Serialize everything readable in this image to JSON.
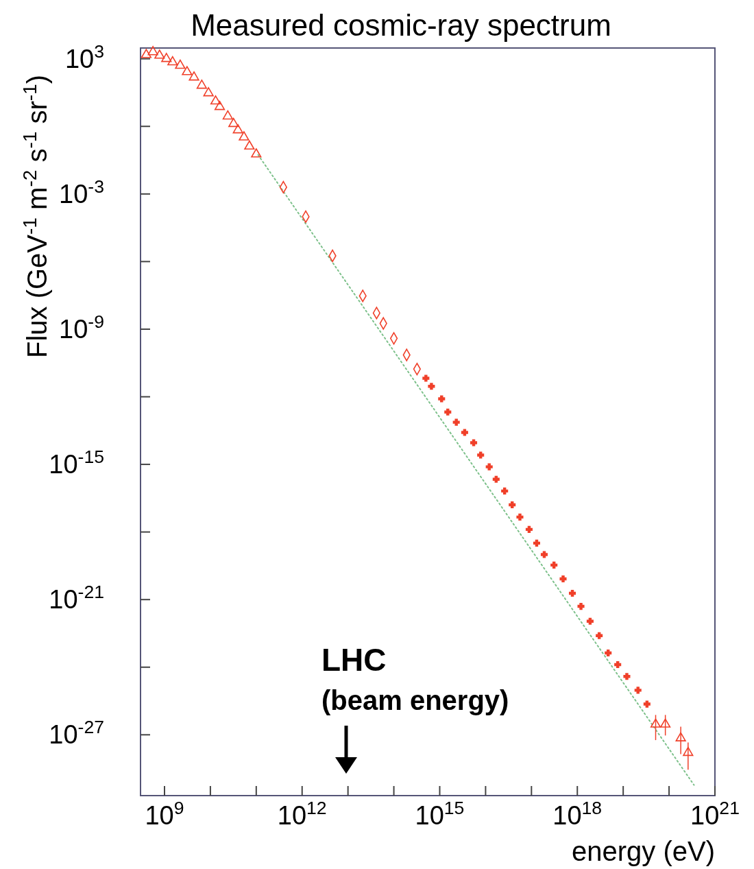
{
  "chart_data": {
    "type": "scatter",
    "title": "Measured cosmic-ray spectrum",
    "xlabel": "energy (eV)",
    "ylabel": "Flux (GeV$^{-1}$ m$^{-2}$ s$^{-1}$ sr$^{-1}$)",
    "log": "xy",
    "xlim": [
      300000000.0,
      1e+21
    ],
    "ylim": [
      2e-30,
      3000.0
    ],
    "xticks": [
      {
        "value": 1000000000.0,
        "label": "10$^{9}$"
      },
      {
        "value": 10000000000.0,
        "label": null
      },
      {
        "value": 100000000000.0,
        "label": null
      },
      {
        "value": 1000000000000.0,
        "label": "10$^{12}$"
      },
      {
        "value": 10000000000000.0,
        "label": null
      },
      {
        "value": 100000000000000.0,
        "label": null
      },
      {
        "value": 1000000000000000.0,
        "label": "10$^{15}$"
      },
      {
        "value": 1e+16,
        "label": null
      },
      {
        "value": 1e+17,
        "label": null
      },
      {
        "value": 1e+18,
        "label": "10$^{18}$"
      },
      {
        "value": 1e+19,
        "label": null
      },
      {
        "value": 1e+20,
        "label": null
      },
      {
        "value": 1e+21,
        "label": "10$^{21}$"
      }
    ],
    "yticks": [
      {
        "value": 1000.0,
        "label": "10$^{3}$"
      },
      {
        "value": 1.0,
        "label": null
      },
      {
        "value": 0.001,
        "label": "10$^{-3}$"
      },
      {
        "value": 1e-06,
        "label": null
      },
      {
        "value": 1e-09,
        "label": "10$^{-9}$"
      },
      {
        "value": 1e-12,
        "label": null
      },
      {
        "value": 1e-15,
        "label": "10$^{-15}$"
      },
      {
        "value": 1e-18,
        "label": null
      },
      {
        "value": 1e-21,
        "label": "10$^{-21}$"
      },
      {
        "value": 1e-24,
        "label": null
      },
      {
        "value": 1e-27,
        "label": "10$^{-27}$"
      }
    ],
    "series": [
      {
        "type": "line",
        "color": "#7cc08a",
        "line_style": "dotted",
        "x": [
          110000000000.0,
          3.5e+20
        ],
        "values": [
          0.054,
          5.9e-30
        ]
      },
      {
        "color": "#f0402a",
        "marker": "triangle",
        "x": [
          400000000.0,
          560000000.0,
          780000000.0,
          1100000000.0,
          1500000000.0,
          2200000000.0,
          3100000000.0,
          4400000000.0,
          6500000000.0,
          9100000000.0,
          13000000000.0,
          16000000000.0,
          24000000000.0,
          32000000000.0,
          40000000000.0,
          54000000000.0,
          71000000000.0,
          100000000000.0
        ],
        "values": [
          1500.0,
          2000.0,
          1400.0,
          1000.0,
          710.0,
          500.0,
          260.0,
          150.0,
          65,
          30,
          13,
          7.4,
          2.8,
          1.3,
          0.68,
          0.33,
          0.13,
          0.058
        ]
      },
      {
        "color": "#f0402a",
        "marker": "diamond",
        "x": [
          390000000000.0,
          1200000000000.0,
          4600000000000.0,
          21000000000000.0,
          42000000000000.0,
          59000000000000.0,
          100000000000000.0,
          190000000000000.0,
          320000000000000.0
        ],
        "values": [
          0.002,
          9.8e-05,
          1.8e-06,
          3e-08,
          5.2e-09,
          1.8e-09,
          3.9e-10,
          7.2e-11,
          1.7e-11
        ]
      },
      {
        "color": "#f0402a",
        "marker": "cross",
        "x": [
          500000000000000.0,
          660000000000000.0,
          1100000000000000.0,
          1500000000000000.0,
          2300000000000000.0,
          3500000000000000.0,
          5500000000000000.0,
          7800000000000000.0,
          1.2e+16,
          1.7e+16,
          2.6e+16,
          3.8e+16,
          5.6e+16,
          8.9e+16,
          1.3e+17,
          1.9e+17,
          3.1e+17,
          4.9e+17,
          7.8e+17,
          1.2e+18,
          1.9e+18,
          3e+18,
          4.7e+18,
          7.6e+18,
          1.2e+19,
          2.1e+19,
          3.3e+19
        ],
        "values": [
          6.6e-12,
          2.9e-12,
          8.1e-13,
          2.1e-13,
          7.4e-14,
          2.6e-14,
          9.1e-15,
          2.6e-15,
          7.8e-16,
          2.2e-16,
          6.6e-17,
          1.6e-17,
          4.6e-18,
          1.3e-18,
          3.2e-19,
          1e-19,
          3.4e-20,
          8.3e-21,
          1.9e-21,
          5e-22,
          1.1e-22,
          2.5e-23,
          4.3e-24,
          1.3e-24,
          3.9e-25,
          9.5e-26,
          2.3e-26
        ]
      },
      {
        "color": "#f0402a",
        "marker": "triangle",
        "x": [
          5.1e+19,
          8.3e+19,
          1.8e+20,
          2.6e+20
        ],
        "values": [
          2.9e-27,
          2.9e-27,
          7.1e-28,
          1.6e-28
        ],
        "errors": [
          [
            5.8e-28,
            7.6e-27
          ],
          [
            9.3e-28,
            7.6e-27
          ],
          [
            1.4e-28,
            2.3e-27
          ],
          [
            2.8e-29,
            4.6e-28
          ]
        ]
      }
    ],
    "annotations": [
      "LHC\n(beam energy)"
    ]
  }
}
